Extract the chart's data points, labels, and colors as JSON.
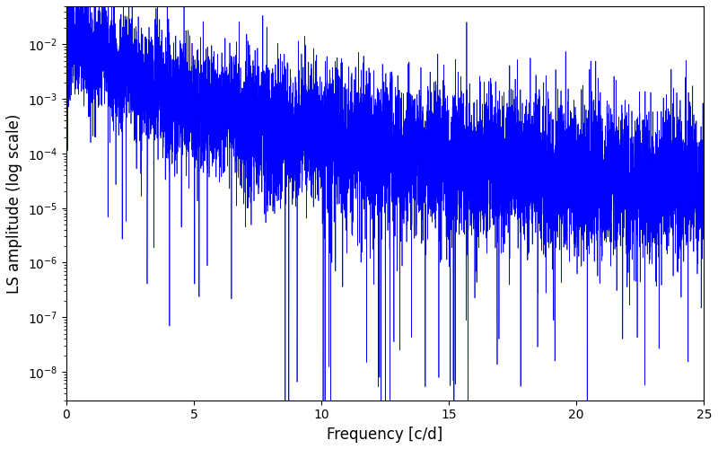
{
  "title": "",
  "xlabel": "Frequency [c/d]",
  "ylabel": "LS amplitude (log scale)",
  "xlim": [
    0,
    25
  ],
  "ylim": [
    3e-09,
    0.05
  ],
  "yscale": "log",
  "line_color": "#0000ff",
  "line_width": 0.5,
  "figsize": [
    8.0,
    5.0
  ],
  "dpi": 100,
  "freq_max": 25.0,
  "n_points": 10000,
  "seed": 7,
  "background_color": "#ffffff",
  "yticks": [
    1e-08,
    1e-07,
    1e-06,
    1e-05,
    0.0001,
    0.001,
    0.01
  ]
}
